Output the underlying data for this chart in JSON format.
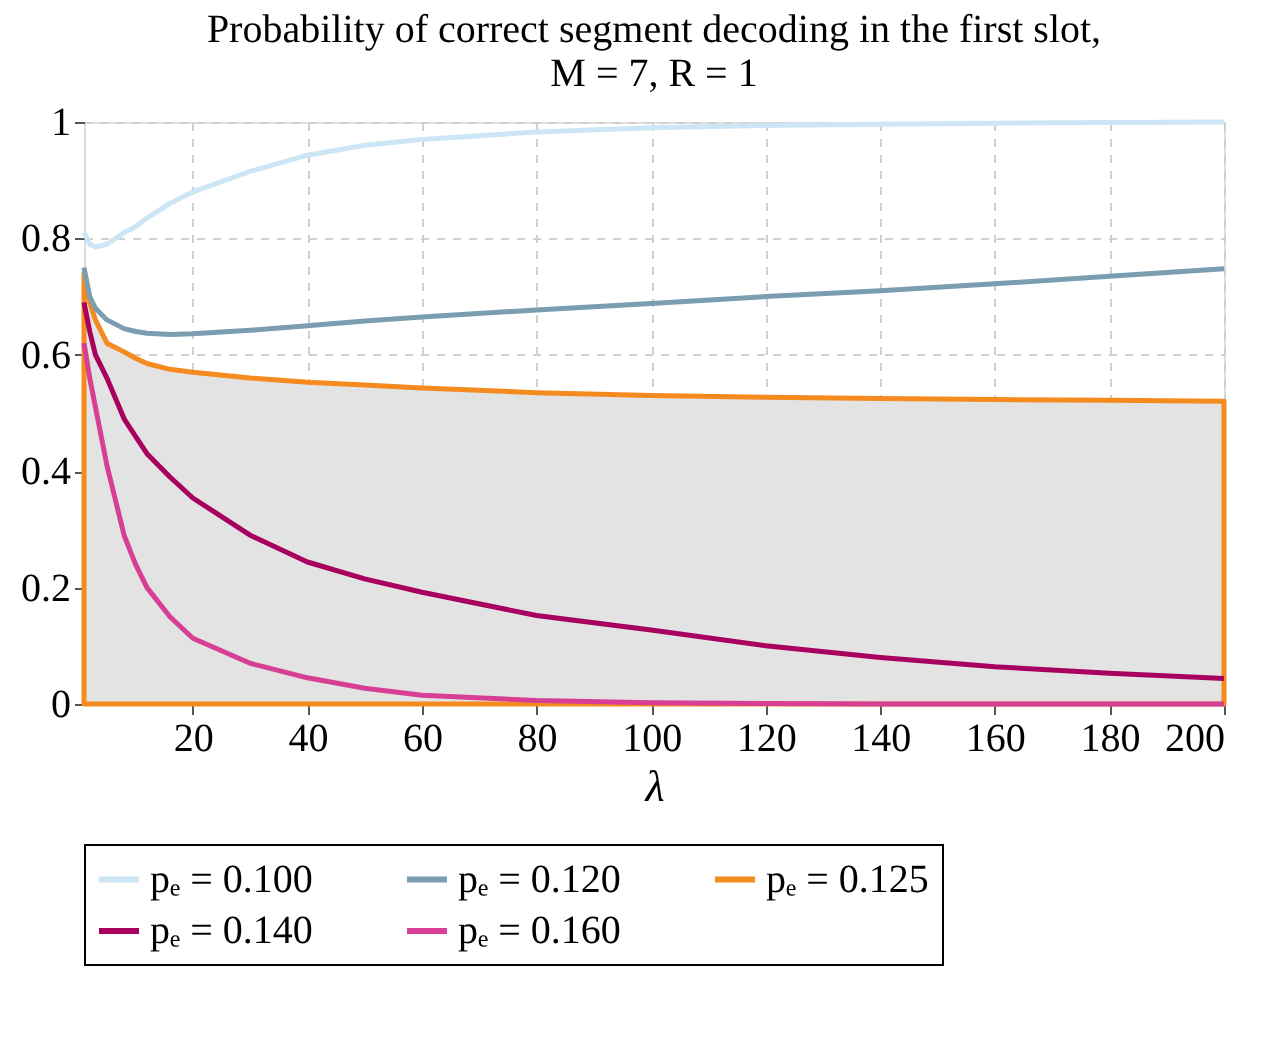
{
  "chart_data": {
    "type": "line",
    "title": [
      "Probability of correct segment decoding in the first slot,",
      "M = 7, R = 1"
    ],
    "xlabel": "λ",
    "x": [
      1,
      2,
      3,
      5,
      8,
      10,
      12,
      16,
      20,
      30,
      40,
      50,
      60,
      80,
      100,
      120,
      140,
      160,
      180,
      200
    ],
    "xlim": [
      1,
      200
    ],
    "xticks": [
      20,
      40,
      60,
      80,
      100,
      120,
      140,
      160,
      180,
      200
    ],
    "ylim": [
      0,
      1
    ],
    "yticks": [
      0,
      0.2,
      0.4,
      0.6,
      0.8,
      1
    ],
    "grid": true,
    "legend": "bottom",
    "series": [
      {
        "name": "pₑ = 0.100",
        "color": "#cce6f5",
        "values": [
          0.81,
          0.79,
          0.785,
          0.79,
          0.81,
          0.82,
          0.835,
          0.86,
          0.88,
          0.915,
          0.943,
          0.96,
          0.97,
          0.983,
          0.99,
          0.994,
          0.996,
          0.998,
          0.999,
          1.0
        ]
      },
      {
        "name": "pₑ = 0.120",
        "color": "#7a9db2",
        "values": [
          0.75,
          0.7,
          0.68,
          0.66,
          0.645,
          0.64,
          0.637,
          0.635,
          0.636,
          0.642,
          0.65,
          0.658,
          0.665,
          0.677,
          0.688,
          0.7,
          0.71,
          0.722,
          0.735,
          0.748
        ]
      },
      {
        "name": "pₑ = 0.125",
        "color": "#f58a1f",
        "type": "area",
        "values": [
          0.74,
          0.69,
          0.66,
          0.62,
          0.605,
          0.594,
          0.585,
          0.575,
          0.57,
          0.56,
          0.553,
          0.548,
          0.543,
          0.535,
          0.53,
          0.527,
          0.525,
          0.523,
          0.522,
          0.52
        ]
      },
      {
        "name": "pₑ = 0.140",
        "color": "#a8005f",
        "values": [
          0.69,
          0.64,
          0.6,
          0.56,
          0.49,
          0.46,
          0.43,
          0.39,
          0.354,
          0.29,
          0.244,
          0.215,
          0.192,
          0.152,
          0.127,
          0.1,
          0.08,
          0.064,
          0.053,
          0.044
        ]
      },
      {
        "name": "pₑ = 0.160",
        "color": "#d63f94",
        "values": [
          0.62,
          0.56,
          0.51,
          0.41,
          0.29,
          0.24,
          0.2,
          0.15,
          0.113,
          0.07,
          0.045,
          0.027,
          0.015,
          0.006,
          0.002,
          0.001,
          0.0,
          0.0,
          0.0,
          0.0
        ]
      }
    ]
  }
}
